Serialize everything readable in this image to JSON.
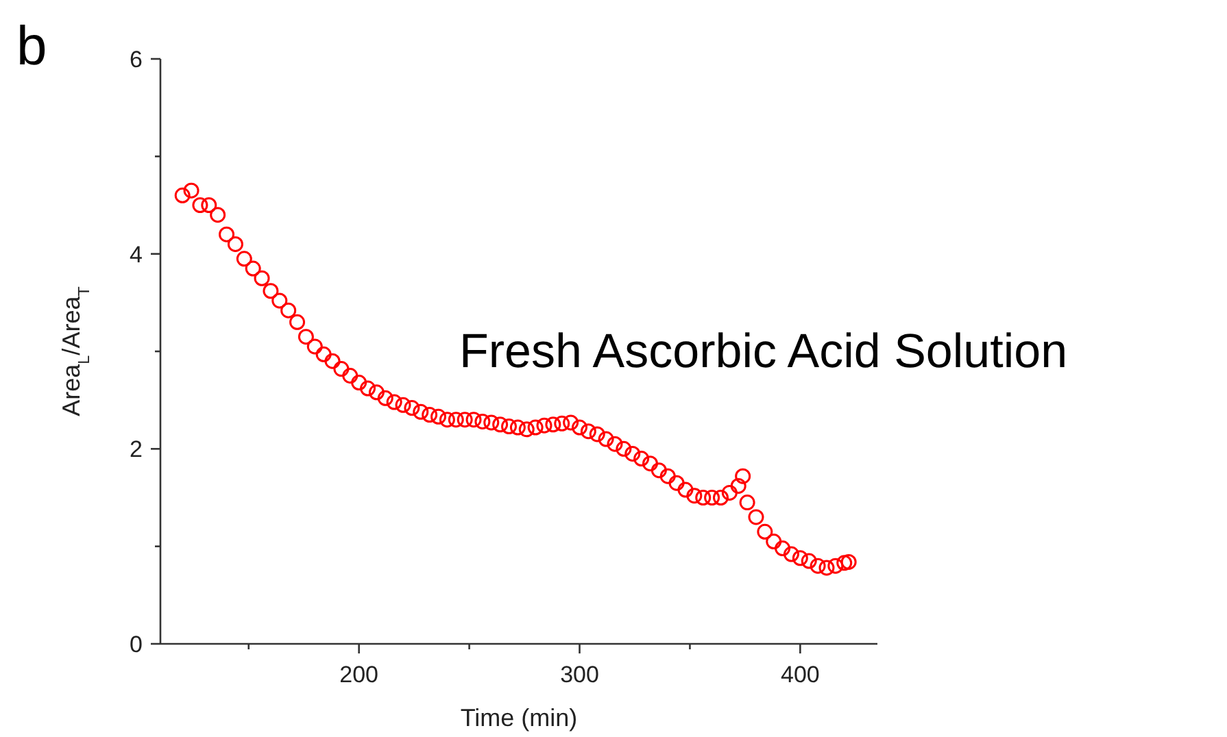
{
  "chart_data": {
    "type": "scatter",
    "xlabel": "Time (min)",
    "ylabel": "Area$_{L}$/Area$_{T}$",
    "annotations": [
      "b",
      "Fresh Ascorbic Acid Solution"
    ],
    "xlim": [
      110,
      435
    ],
    "ylim": [
      0,
      6
    ],
    "xticks": [
      {
        "value": 150,
        "label": null
      },
      200,
      {
        "value": 250,
        "label": null
      },
      300,
      {
        "value": 350,
        "label": null
      },
      400
    ],
    "yticks": [
      0,
      {
        "value": 1,
        "label": null
      },
      2,
      {
        "value": 3,
        "label": null
      },
      4,
      {
        "value": 5,
        "label": null
      },
      6
    ],
    "grid": false,
    "marker": "circle",
    "series": [
      {
        "color": "#ff0000",
        "x": [
          120,
          124,
          128,
          132,
          136,
          140,
          144,
          148,
          152,
          156,
          160,
          164,
          168,
          172,
          176,
          180,
          184,
          188,
          192,
          196,
          200,
          204,
          208,
          212,
          216,
          220,
          224,
          228,
          232,
          236,
          240,
          244,
          248,
          252,
          256,
          260,
          264,
          268,
          272,
          276,
          280,
          284,
          288,
          292,
          296,
          300,
          304,
          308,
          312,
          316,
          320,
          324,
          328,
          332,
          336,
          340,
          344,
          348,
          352,
          356,
          360,
          364,
          368,
          372,
          374,
          376,
          380,
          384,
          388,
          392,
          396,
          400,
          404,
          408,
          412,
          416,
          420,
          422
        ],
        "values": [
          4.6,
          4.65,
          4.5,
          4.5,
          4.4,
          4.2,
          4.1,
          3.95,
          3.85,
          3.75,
          3.62,
          3.52,
          3.42,
          3.3,
          3.15,
          3.05,
          2.97,
          2.9,
          2.82,
          2.75,
          2.68,
          2.62,
          2.58,
          2.52,
          2.48,
          2.45,
          2.42,
          2.38,
          2.35,
          2.33,
          2.3,
          2.3,
          2.3,
          2.3,
          2.28,
          2.27,
          2.25,
          2.23,
          2.22,
          2.2,
          2.22,
          2.24,
          2.25,
          2.26,
          2.27,
          2.22,
          2.18,
          2.15,
          2.1,
          2.05,
          2.0,
          1.95,
          1.9,
          1.85,
          1.78,
          1.72,
          1.65,
          1.58,
          1.52,
          1.5,
          1.5,
          1.5,
          1.55,
          1.62,
          1.72,
          1.45,
          1.3,
          1.15,
          1.05,
          0.98,
          0.92,
          0.88,
          0.85,
          0.8,
          0.78,
          0.8,
          0.83,
          0.84
        ]
      }
    ]
  }
}
